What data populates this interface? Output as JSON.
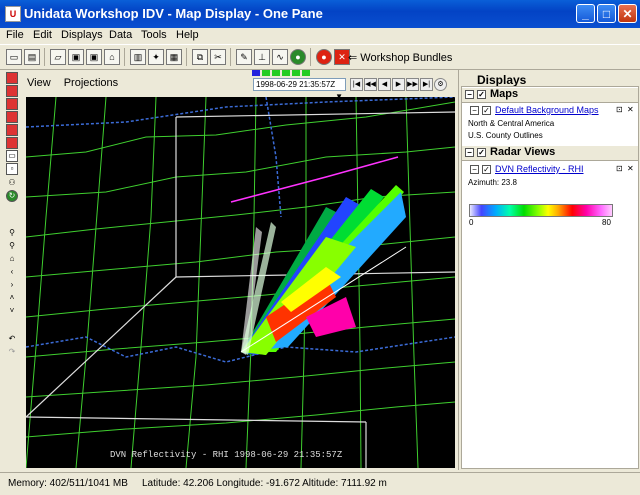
{
  "window": {
    "title": "Unidata Workshop IDV - Map Display - One Pane",
    "min_label": "_",
    "max_label": "□",
    "close_label": "✕"
  },
  "menu": [
    "File",
    "Edit",
    "Displays",
    "Data",
    "Tools",
    "Help"
  ],
  "toolbar": {
    "bundles_label": "Workshop Bundles"
  },
  "view_menu": {
    "view": "View",
    "projections": "Projections"
  },
  "animation": {
    "time": "1998-06-29 21:35:57Z"
  },
  "map": {
    "caption": "DVN Reflectivity - RHI 1998-06-29 21:35:57Z"
  },
  "displays": {
    "title": "Displays",
    "maps": {
      "header": "Maps",
      "link": "Default Background Maps",
      "items": [
        "North & Central America",
        "U.S. County Outlines"
      ]
    },
    "radar": {
      "header": "Radar Views",
      "link": "DVN Reflectivity - RHI",
      "azimuth": "Azimuth: 23.8",
      "min": "0",
      "max": "80"
    }
  },
  "status": {
    "memory": "Memory: 402/511/1041 MB",
    "location": "Latitude: 42.206 Longitude: -91.672 Altitude: 7111.92 m"
  }
}
